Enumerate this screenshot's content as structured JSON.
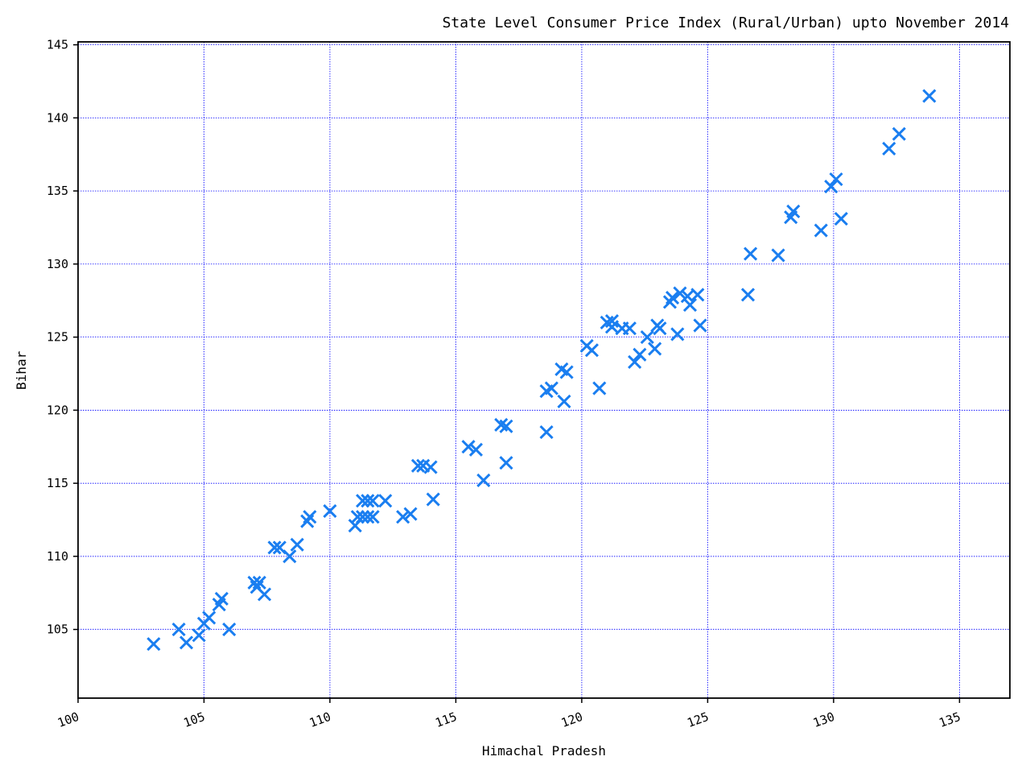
{
  "chart_data": {
    "type": "scatter",
    "title": "State Level Consumer Price Index (Rural/Urban) upto November 2014",
    "xlabel": "Himachal Pradesh",
    "ylabel": "Bihar",
    "xlim": [
      100,
      137
    ],
    "ylim": [
      100.3,
      145.2
    ],
    "xticks": [
      100,
      105,
      110,
      115,
      120,
      125,
      130,
      135
    ],
    "yticks": [
      105,
      110,
      115,
      120,
      125,
      130,
      135,
      140,
      145
    ],
    "grid": true,
    "marker": "x",
    "color": "#1a7ef0",
    "grid_color": "#0000ff",
    "points": [
      [
        103.0,
        104.0
      ],
      [
        104.0,
        105.0
      ],
      [
        104.3,
        104.1
      ],
      [
        104.8,
        104.6
      ],
      [
        105.0,
        105.4
      ],
      [
        105.2,
        105.8
      ],
      [
        105.6,
        106.7
      ],
      [
        105.7,
        107.1
      ],
      [
        106.0,
        105.0
      ],
      [
        107.0,
        108.2
      ],
      [
        107.1,
        107.9
      ],
      [
        107.2,
        108.2
      ],
      [
        107.4,
        107.4
      ],
      [
        107.8,
        110.6
      ],
      [
        108.0,
        110.6
      ],
      [
        108.4,
        110.0
      ],
      [
        108.7,
        110.8
      ],
      [
        109.1,
        112.4
      ],
      [
        109.2,
        112.7
      ],
      [
        110.0,
        113.1
      ],
      [
        111.0,
        112.1
      ],
      [
        111.1,
        112.7
      ],
      [
        111.3,
        112.7
      ],
      [
        111.3,
        113.8
      ],
      [
        111.5,
        112.7
      ],
      [
        111.5,
        113.8
      ],
      [
        111.7,
        112.7
      ],
      [
        111.7,
        113.8
      ],
      [
        112.2,
        113.8
      ],
      [
        112.9,
        112.7
      ],
      [
        113.2,
        112.9
      ],
      [
        113.5,
        116.2
      ],
      [
        113.7,
        116.2
      ],
      [
        114.0,
        116.1
      ],
      [
        114.1,
        113.9
      ],
      [
        115.5,
        117.5
      ],
      [
        115.8,
        117.3
      ],
      [
        116.1,
        115.2
      ],
      [
        116.8,
        119.0
      ],
      [
        117.0,
        118.9
      ],
      [
        117.0,
        116.4
      ],
      [
        118.6,
        118.5
      ],
      [
        118.6,
        121.3
      ],
      [
        118.8,
        121.5
      ],
      [
        119.2,
        122.8
      ],
      [
        119.3,
        120.6
      ],
      [
        119.4,
        122.6
      ],
      [
        120.2,
        124.4
      ],
      [
        120.4,
        124.1
      ],
      [
        120.7,
        121.5
      ],
      [
        121.0,
        126.0
      ],
      [
        121.2,
        125.7
      ],
      [
        121.2,
        126.1
      ],
      [
        121.6,
        125.6
      ],
      [
        121.9,
        125.6
      ],
      [
        122.1,
        123.3
      ],
      [
        122.3,
        123.8
      ],
      [
        122.6,
        125.0
      ],
      [
        122.9,
        124.2
      ],
      [
        123.0,
        125.8
      ],
      [
        123.1,
        125.6
      ],
      [
        123.5,
        127.4
      ],
      [
        123.6,
        127.7
      ],
      [
        123.8,
        125.2
      ],
      [
        123.9,
        128.0
      ],
      [
        124.2,
        127.8
      ],
      [
        124.3,
        127.2
      ],
      [
        124.6,
        127.9
      ],
      [
        124.7,
        125.8
      ],
      [
        126.6,
        127.9
      ],
      [
        126.7,
        130.7
      ],
      [
        127.8,
        130.6
      ],
      [
        128.3,
        133.2
      ],
      [
        128.4,
        133.6
      ],
      [
        129.5,
        132.3
      ],
      [
        129.9,
        135.3
      ],
      [
        130.1,
        135.8
      ],
      [
        130.3,
        133.1
      ],
      [
        132.2,
        137.9
      ],
      [
        132.6,
        138.9
      ],
      [
        133.8,
        141.5
      ]
    ]
  }
}
